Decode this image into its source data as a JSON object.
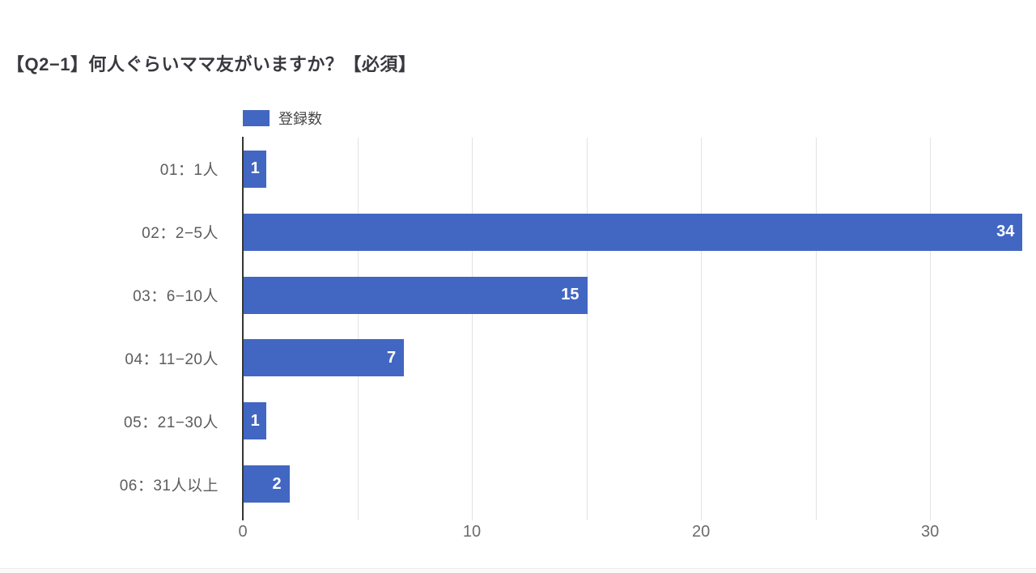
{
  "page": {
    "background": "#ffffff"
  },
  "chart_data": {
    "type": "bar",
    "orientation": "horizontal",
    "title": "【Q2−1】何人ぐらいママ友がいますか？【必須】",
    "legend": {
      "label": "登録数",
      "position": "top",
      "swatch_color": "#4267c2"
    },
    "categories": [
      "01：1人",
      "02：2−5人",
      "03：6−10人",
      "04：11−20人",
      "05：21−30人",
      "06：31人以上"
    ],
    "series": [
      {
        "name": "登録数",
        "values": [
          1,
          34,
          15,
          7,
          1,
          2
        ]
      }
    ],
    "values": [
      1,
      34,
      15,
      7,
      1,
      2
    ],
    "value_labels": [
      "1",
      "34",
      "15",
      "7",
      "1",
      "2"
    ],
    "xlabel": "",
    "ylabel": "",
    "xlim": [
      0,
      34.2
    ],
    "x_ticks": [
      0,
      10,
      20,
      30
    ],
    "x_tick_labels": [
      "0",
      "10",
      "20",
      "30"
    ],
    "gridline_interval": 5,
    "grid": true,
    "colors": {
      "bar": "#4267c2",
      "value_label": "#ffffff",
      "title": "#38383f",
      "category_label": "#5c5c5c",
      "tick_label": "#6b6b6b",
      "gridline": "#e3e3e3",
      "axis_line": "#363636"
    }
  }
}
